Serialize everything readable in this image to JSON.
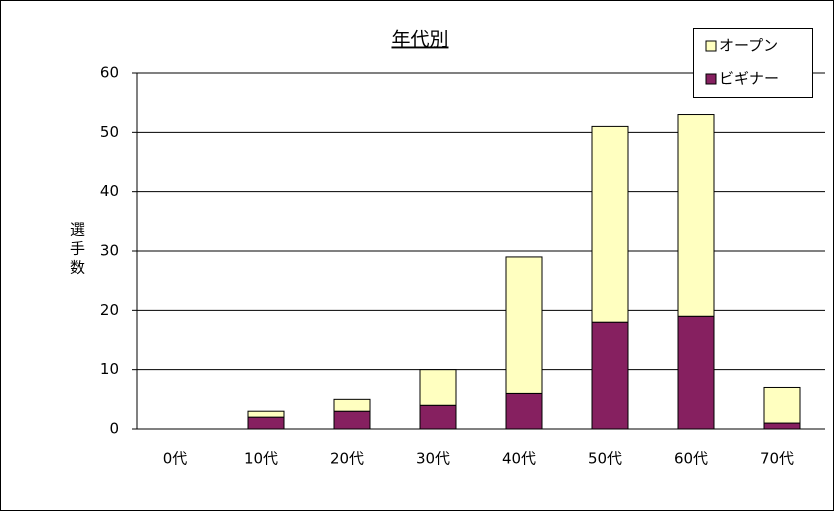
{
  "chart_data": {
    "type": "bar",
    "stacked": true,
    "title": "年代別",
    "y_label": "選手数",
    "categories": [
      "0代",
      "10代",
      "20代",
      "30代",
      "40代",
      "50代",
      "60代",
      "70代"
    ],
    "series": [
      {
        "name": "ビギナー",
        "color": "#862060",
        "values": [
          0,
          2,
          3,
          4,
          6,
          18,
          19,
          1
        ]
      },
      {
        "name": "オープン",
        "color": "#ffffc0",
        "values": [
          0,
          1,
          2,
          6,
          23,
          33,
          34,
          6
        ]
      }
    ],
    "ylim": [
      0,
      60
    ],
    "yticks": [
      0,
      10,
      20,
      30,
      40,
      50,
      60
    ],
    "grid": true,
    "legend": "top-right"
  }
}
